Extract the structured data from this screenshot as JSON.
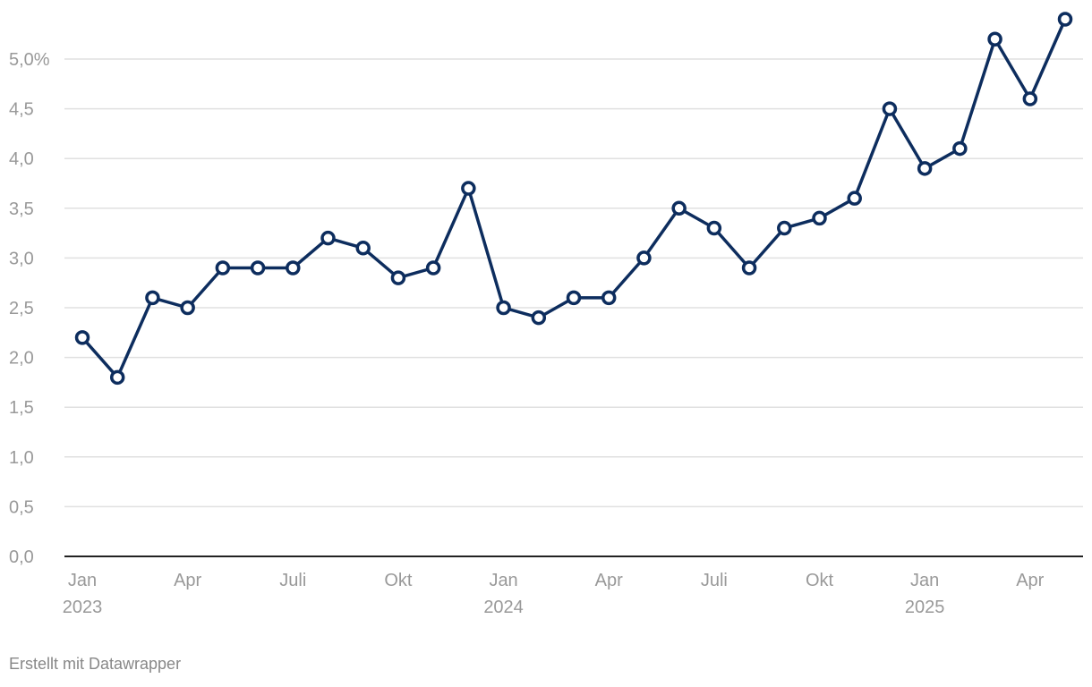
{
  "chart_data": {
    "type": "line",
    "title": "",
    "xlabel": "",
    "ylabel": "",
    "x": [
      "2023-01",
      "2023-02",
      "2023-03",
      "2023-04",
      "2023-05",
      "2023-06",
      "2023-07",
      "2023-08",
      "2023-09",
      "2023-10",
      "2023-11",
      "2023-12",
      "2024-01",
      "2024-02",
      "2024-03",
      "2024-04",
      "2024-05",
      "2024-06",
      "2024-07",
      "2024-08",
      "2024-09",
      "2024-10",
      "2024-11",
      "2024-12",
      "2025-01",
      "2025-02",
      "2025-03",
      "2025-04",
      "2025-05"
    ],
    "series": [
      {
        "values": [
          2.2,
          1.8,
          2.6,
          2.5,
          2.9,
          2.9,
          2.9,
          3.2,
          3.1,
          2.8,
          2.9,
          3.7,
          2.5,
          2.4,
          2.6,
          2.6,
          3.0,
          3.5,
          3.3,
          2.9,
          3.3,
          3.4,
          3.6,
          4.5,
          3.9,
          4.1,
          5.2,
          4.6,
          5.4
        ]
      }
    ],
    "ylim": [
      0,
      5.4
    ],
    "yticks": [
      {
        "value": 0,
        "label": "0,0"
      },
      {
        "value": 0.5,
        "label": "0,5"
      },
      {
        "value": 1.0,
        "label": "1,0"
      },
      {
        "value": 1.5,
        "label": "1,5"
      },
      {
        "value": 2.0,
        "label": "2,0"
      },
      {
        "value": 2.5,
        "label": "2,5"
      },
      {
        "value": 3.0,
        "label": "3,0"
      },
      {
        "value": 3.5,
        "label": "3,5"
      },
      {
        "value": 4.0,
        "label": "4,0"
      },
      {
        "value": 4.5,
        "label": "4,5"
      },
      {
        "value": 5.0,
        "label": "5,0%"
      }
    ],
    "xticks": [
      {
        "x": "2023-01",
        "label": "Jan",
        "sublabel": "2023"
      },
      {
        "x": "2023-04",
        "label": "Apr",
        "sublabel": ""
      },
      {
        "x": "2023-07",
        "label": "Juli",
        "sublabel": ""
      },
      {
        "x": "2023-10",
        "label": "Okt",
        "sublabel": ""
      },
      {
        "x": "2024-01",
        "label": "Jan",
        "sublabel": "2024"
      },
      {
        "x": "2024-04",
        "label": "Apr",
        "sublabel": ""
      },
      {
        "x": "2024-07",
        "label": "Juli",
        "sublabel": ""
      },
      {
        "x": "2024-10",
        "label": "Okt",
        "sublabel": ""
      },
      {
        "x": "2025-01",
        "label": "Jan",
        "sublabel": "2025"
      },
      {
        "x": "2025-04",
        "label": "Apr",
        "sublabel": ""
      }
    ],
    "grid": true,
    "line_color": "#0d2d5e",
    "grid_color": "#e0e0e0",
    "axis_color": "#222222"
  },
  "footer": {
    "credit": "Erstellt mit Datawrapper"
  }
}
